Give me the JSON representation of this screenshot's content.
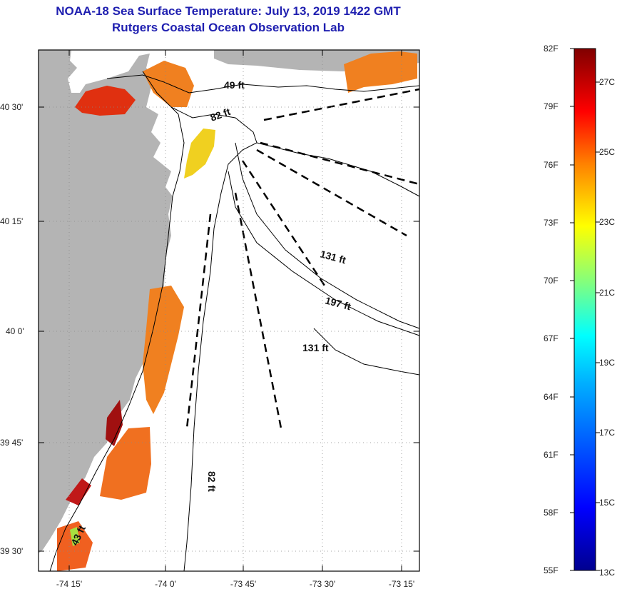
{
  "title": {
    "line1": "NOAA-18 Sea Surface Temperature:  July 13, 2019 1422 GMT",
    "line2": "Rutgers Coastal Ocean Observation Lab"
  },
  "map": {
    "lat_labels": [
      "40 30'",
      "40 15'",
      "40 0'",
      "39 45'",
      "39 30'"
    ],
    "lon_labels": [
      "-74 15'",
      "-74 0'",
      "-73 45'",
      "-73 30'",
      "-73 15'"
    ],
    "isobaths": [
      "49 ft",
      "82 ft",
      "131 ft",
      "197 ft",
      "131 ft",
      "82 ft",
      "43 ft"
    ],
    "colors": {
      "land": "#b4b4b4",
      "contour": "#000000"
    }
  },
  "colorbar": {
    "fahrenheit": [
      "82F",
      "79F",
      "76F",
      "73F",
      "70F",
      "67F",
      "64F",
      "61F",
      "58F",
      "55F"
    ],
    "celsius": [
      "27C",
      "25C",
      "23C",
      "21C",
      "19C",
      "17C",
      "15C",
      "13C"
    ],
    "range_f": [
      55,
      82
    ],
    "colors": [
      "#00008f",
      "#0000ff",
      "#0080ff",
      "#00ffff",
      "#80ff80",
      "#ffff00",
      "#ff8000",
      "#ff0000",
      "#800000"
    ]
  }
}
